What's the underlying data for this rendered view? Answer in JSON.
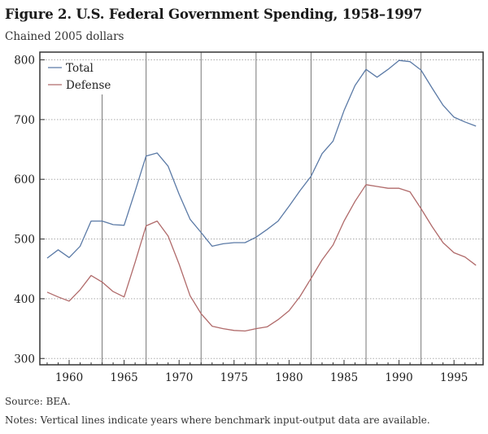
{
  "figure": {
    "title": "Figure 2. U.S. Federal Government Spending, 1958–1997",
    "subtitle": "Chained 2005 dollars",
    "source": "Source: BEA.",
    "notes": "Notes: Vertical lines indicate years where benchmark input-output data are available."
  },
  "chart_data": {
    "type": "line",
    "title": "Figure 2. U.S. Federal Government Spending, 1958–1997",
    "subtitle": "Chained 2005 dollars",
    "xlabel": "",
    "ylabel": "Chained 2005 dollars",
    "xlim": [
      1957.5,
      1997.9
    ],
    "ylim": [
      288,
      812
    ],
    "xticks": [
      1960,
      1965,
      1970,
      1975,
      1980,
      1985,
      1990,
      1995
    ],
    "xtick_labels": [
      "1960",
      "1965",
      "1970",
      "1975",
      "1980",
      "1985",
      "1990",
      "1995"
    ],
    "yticks": [
      300,
      400,
      500,
      600,
      700,
      800
    ],
    "ytick_labels": [
      "300",
      "400",
      "500",
      "600",
      "700",
      "800"
    ],
    "grid": "horizontal dotted",
    "legend": {
      "placement": "top-left",
      "entries": [
        "Total",
        "Defense"
      ]
    },
    "benchmark_years": [
      1963,
      1967,
      1972,
      1977,
      1982,
      1987,
      1992
    ],
    "x": [
      1958,
      1959,
      1960,
      1961,
      1962,
      1963,
      1964,
      1965,
      1966,
      1967,
      1968,
      1969,
      1970,
      1971,
      1972,
      1973,
      1974,
      1975,
      1976,
      1977,
      1978,
      1979,
      1980,
      1981,
      1982,
      1983,
      1984,
      1985,
      1986,
      1987,
      1988,
      1989,
      1990,
      1991,
      1992,
      1993,
      1994,
      1995,
      1996,
      1997
    ],
    "series": [
      {
        "name": "Total",
        "color": "#5b7aa6",
        "values": [
          468,
          482,
          469,
          488,
          530,
          530,
          524,
          523,
          580,
          639,
          644,
          622,
          575,
          533,
          511,
          488,
          492,
          494,
          494,
          503,
          516,
          530,
          555,
          581,
          605,
          643,
          664,
          715,
          757,
          784,
          771,
          784,
          799,
          797,
          783,
          753,
          724,
          704,
          696,
          689
        ]
      },
      {
        "name": "Defense",
        "color": "#b06a6a",
        "values": [
          411,
          403,
          396,
          415,
          439,
          428,
          412,
          403,
          461,
          522,
          530,
          505,
          458,
          405,
          375,
          354,
          350,
          347,
          346,
          350,
          353,
          365,
          380,
          404,
          434,
          465,
          490,
          530,
          563,
          591,
          588,
          585,
          585,
          579,
          551,
          521,
          494,
          477,
          470,
          456
        ]
      }
    ]
  }
}
